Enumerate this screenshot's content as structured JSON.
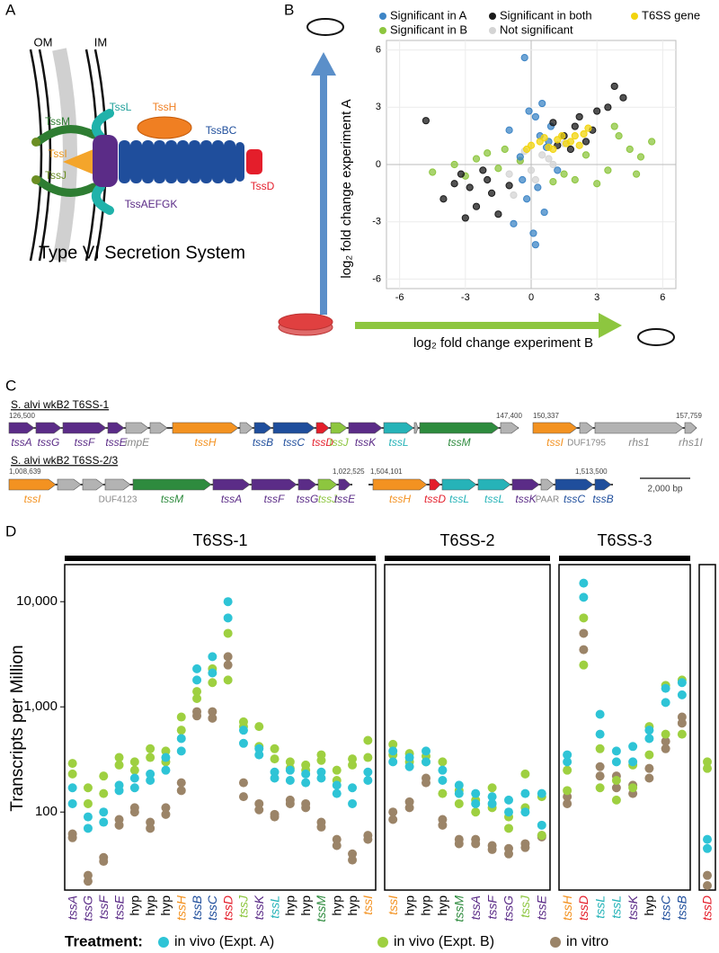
{
  "panel_labels": [
    "A",
    "B",
    "C",
    "D"
  ],
  "panel_a": {
    "labels": {
      "om": "OM",
      "im": "IM",
      "tssm": "TssM",
      "tssl": "TssL",
      "tssh": "TssH",
      "tssbc": "TssBC",
      "tssi": "TssI",
      "tssj": "TssJ",
      "tssaefgk": "TssAEFGK",
      "tssd": "TssD"
    },
    "caption": "Type VI Secretion System"
  },
  "chart_data": [
    {
      "type": "scatter",
      "xlabel": "log₂ fold change experiment B",
      "ylabel": "log₂ fold change experiment A",
      "xlim": [
        -6.6,
        6.6
      ],
      "ylim": [
        -6.5,
        6.5
      ],
      "xticks": [
        -6,
        -3,
        0,
        3,
        6
      ],
      "yticks": [
        -6,
        -3,
        0,
        3,
        6
      ],
      "grid": true,
      "series": [
        {
          "name": "Significant in A",
          "color": "#3d85c6",
          "x": [
            -0.3,
            0.5,
            0.2,
            -1.0,
            0.8,
            -0.5,
            1.2,
            0.3,
            -0.2,
            0.6,
            -0.8,
            0.1,
            0.4,
            -0.4,
            0.9,
            0.2,
            0.7,
            -0.1
          ],
          "y": [
            5.6,
            3.2,
            2.5,
            1.8,
            1.2,
            0.4,
            -0.3,
            -1.2,
            -1.8,
            -2.5,
            -3.1,
            -3.6,
            1.5,
            -0.8,
            2.0,
            -4.2,
            0.9,
            2.8
          ]
        },
        {
          "name": "Significant in both",
          "color": "#1a1a1a",
          "x": [
            -3.5,
            -4.0,
            -3.2,
            -2.5,
            -2.8,
            -1.8,
            -2.2,
            -1.5,
            -3.0,
            -2.0,
            1.5,
            2.0,
            2.5,
            3.0,
            1.8,
            2.2,
            3.5,
            4.2,
            1.2,
            2.8,
            -4.8,
            -1.0,
            1.0,
            3.8
          ],
          "y": [
            -1.0,
            -1.8,
            -0.5,
            -2.2,
            -1.2,
            -1.5,
            -0.3,
            -2.6,
            -2.8,
            -0.8,
            1.5,
            2.0,
            1.2,
            2.8,
            0.8,
            2.5,
            3.0,
            3.5,
            1.0,
            1.8,
            2.3,
            -1.1,
            2.2,
            4.1
          ]
        },
        {
          "name": "T6SS gene",
          "color": "#f2d40c",
          "x": [
            0.0,
            0.4,
            0.8,
            1.2,
            1.6,
            2.0,
            2.4,
            0.6,
            1.0,
            1.4,
            1.8,
            2.2,
            -0.2,
            2.6
          ],
          "y": [
            1.0,
            1.2,
            0.9,
            1.3,
            1.1,
            1.5,
            1.6,
            1.4,
            0.8,
            1.5,
            1.2,
            1.0,
            0.8,
            1.9
          ]
        },
        {
          "name": "Significant in B",
          "color": "#8dc63f",
          "x": [
            -4.5,
            -3.5,
            -2.5,
            -1.5,
            -0.5,
            1.5,
            2.5,
            3.5,
            4.5,
            5.5,
            3.0,
            4.0,
            5.0,
            2.0,
            -2.0,
            -3.0,
            1.0,
            3.8,
            4.8,
            -1.2
          ],
          "y": [
            -0.4,
            0.0,
            0.3,
            -0.2,
            0.2,
            -0.5,
            0.5,
            -0.3,
            0.8,
            1.2,
            -1.0,
            1.5,
            0.4,
            -0.8,
            0.6,
            -0.6,
            -0.9,
            2.0,
            -0.5,
            0.8
          ]
        },
        {
          "name": "Not significant",
          "color": "#d4d4d4",
          "x": [
            -0.5,
            0.0,
            0.5,
            -1.0,
            1.0,
            0.2,
            -0.3,
            0.8,
            1.5,
            -0.8
          ],
          "y": [
            0.2,
            -0.3,
            0.5,
            -0.5,
            0.0,
            -0.8,
            0.7,
            0.3,
            1.1,
            -1.6
          ]
        }
      ]
    },
    {
      "type": "strip",
      "ylabel": "Transcripts per Million",
      "log_scale": true,
      "ylim": [
        20,
        20000
      ],
      "yticks": [
        {
          "value": 10000,
          "label": "10,000"
        },
        {
          "value": 1000,
          "label": "1,000"
        },
        100
      ],
      "legend_title": "Treatment:",
      "series": [
        {
          "name": "in vivo (Expt. A)",
          "color": "#2ec4d6"
        },
        {
          "name": "in vivo (Expt. B)",
          "color": "#9ed040"
        },
        {
          "name": "in vitro",
          "color": "#9b8468"
        }
      ],
      "groups": [
        {
          "title": "T6SS-1",
          "categories": [
            "tssA",
            "tssG",
            "tssF",
            "tssE",
            "hyp",
            "hyp",
            "hyp",
            "tssH",
            "tssB",
            "tssC",
            "tssD",
            "tssJ",
            "tssK",
            "tssL",
            "hyp",
            "hyp",
            "tssM",
            "hyp",
            "hyp",
            "tssI"
          ],
          "category_colors": [
            "#5b2c87",
            "#5b2c87",
            "#5b2c87",
            "#5b2c87",
            "#000000",
            "#000000",
            "#000000",
            "#f39221",
            "#1f4e9c",
            "#1f4e9c",
            "#e41e2b",
            "#8dc63f",
            "#5b2c87",
            "#26b3b8",
            "#000000",
            "#000000",
            "#2e8b3e",
            "#000000",
            "#000000",
            "#f39221"
          ],
          "values": [
            [
              [
                170,
                120
              ],
              [
                90,
                70
              ],
              [
                100,
                80
              ],
              [
                180,
                160
              ],
              [
                210,
                170
              ],
              [
                230,
                200
              ],
              [
                330,
                250
              ],
              [
                500,
                380
              ],
              [
                2300,
                1800
              ],
              [
                3000,
                2100
              ],
              [
                10000,
                7000
              ],
              [
                600,
                450
              ],
              [
                400,
                350
              ],
              [
                240,
                210
              ],
              [
                250,
                200
              ],
              [
                230,
                190
              ],
              [
                240,
                210
              ],
              [
                180,
                150
              ],
              [
                170,
                120
              ],
              [
                240,
                200
              ]
            ],
            [
              [
                290,
                230
              ],
              [
                170,
                120
              ],
              [
                220,
                150
              ],
              [
                330,
                280
              ],
              [
                300,
                250
              ],
              [
                400,
                330
              ],
              [
                380,
                300
              ],
              [
                800,
                600
              ],
              [
                1400,
                1200
              ],
              [
                2300,
                1700
              ],
              [
                5000,
                1800
              ],
              [
                720,
                650
              ],
              [
                650,
                420
              ],
              [
                400,
                320
              ],
              [
                300,
                260
              ],
              [
                280,
                250
              ],
              [
                350,
                310
              ],
              [
                250,
                200
              ],
              [
                320,
                280
              ],
              [
                480,
                330
              ]
            ],
            [
              [
                62,
                57
              ],
              [
                25,
                22
              ],
              [
                37,
                34
              ],
              [
                85,
                75
              ],
              [
                110,
                100
              ],
              [
                80,
                70
              ],
              [
                110,
                95
              ],
              [
                190,
                160
              ],
              [
                900,
                820
              ],
              [
                900,
                780
              ],
              [
                3000,
                2500
              ],
              [
                190,
                140
              ],
              [
                120,
                105
              ],
              [
                95,
                90
              ],
              [
                130,
                120
              ],
              [
                120,
                110
              ],
              [
                80,
                72
              ],
              [
                55,
                48
              ],
              [
                40,
                35
              ],
              [
                60,
                55
              ]
            ]
          ]
        },
        {
          "title": "T6SS-2",
          "categories": [
            "tssI",
            "hyp",
            "hyp",
            "hyp",
            "tssM",
            "tssA",
            "tssF",
            "tssG",
            "tssJ",
            "tssE"
          ],
          "category_colors": [
            "#f39221",
            "#000000",
            "#000000",
            "#000000",
            "#2e8b3e",
            "#5b2c87",
            "#5b2c87",
            "#5b2c87",
            "#8dc63f",
            "#5b2c87"
          ],
          "values": [
            [
              [
                380,
                300
              ],
              [
                330,
                270
              ],
              [
                380,
                300
              ],
              [
                250,
                200
              ],
              [
                180,
                150
              ],
              [
                150,
                120
              ],
              [
                140,
                120
              ],
              [
                130,
                100
              ],
              [
                150,
                100
              ],
              [
                150,
                75
              ]
            ],
            [
              [
                440,
                350
              ],
              [
                360,
                300
              ],
              [
                340,
                300
              ],
              [
                300,
                150
              ],
              [
                160,
                120
              ],
              [
                130,
                100
              ],
              [
                170,
                110
              ],
              [
                90,
                70
              ],
              [
                230,
                110
              ],
              [
                140,
                60
              ]
            ],
            [
              [
                100,
                85
              ],
              [
                125,
                110
              ],
              [
                210,
                190
              ],
              [
                85,
                75
              ],
              [
                55,
                50
              ],
              [
                55,
                50
              ],
              [
                48,
                44
              ],
              [
                45,
                40
              ],
              [
                50,
                46
              ],
              [
                60,
                58
              ]
            ]
          ]
        },
        {
          "title": "T6SS-3",
          "categories": [
            "tssH",
            "tssD",
            "tssL",
            "tssL",
            "tssK",
            "hyp",
            "tssC",
            "tssB"
          ],
          "category_colors": [
            "#f39221",
            "#e41e2b",
            "#26b3b8",
            "#26b3b8",
            "#5b2c87",
            "#000000",
            "#1f4e9c",
            "#1f4e9c"
          ],
          "values": [
            [
              [
                350,
                300
              ],
              [
                15000,
                11000
              ],
              [
                850,
                550
              ],
              [
                380,
                300
              ],
              [
                420,
                300
              ],
              [
                600,
                500
              ],
              [
                1500,
                1100
              ],
              [
                1700,
                1300
              ]
            ],
            [
              [
                250,
                160
              ],
              [
                7000,
                2500
              ],
              [
                400,
                170
              ],
              [
                200,
                130
              ],
              [
                280,
                170
              ],
              [
                650,
                350
              ],
              [
                1600,
                550
              ],
              [
                1800,
                550
              ]
            ],
            [
              [
                140,
                120
              ],
              [
                5000,
                3500
              ],
              [
                270,
                220
              ],
              [
                220,
                170
              ],
              [
                180,
                150
              ],
              [
                260,
                210
              ],
              [
                470,
                400
              ],
              [
                800,
                700
              ]
            ]
          ]
        },
        {
          "categories": [
            "tssD"
          ],
          "category_colors": [
            "#e41e2b"
          ],
          "values": [
            [
              [
                55,
                45
              ]
            ],
            [
              [
                300,
                260
              ]
            ],
            [
              [
                25,
                20
              ]
            ]
          ]
        }
      ]
    }
  ],
  "panel_c": {
    "tracks": [
      {
        "title": "S. alvi wkB2 T6SS-1",
        "coordinates": [
          "126,500",
          "147,400",
          "150,337",
          "157,759"
        ],
        "genes": [
          {
            "label": "tssA",
            "color": "#5b2c87"
          },
          {
            "label": "tssG",
            "color": "#5b2c87"
          },
          {
            "label": "tssF",
            "color": "#5b2c87"
          },
          {
            "label": "tssE",
            "color": "#5b2c87"
          },
          {
            "label": "impE",
            "color": "#b3b3b3"
          },
          {
            "label": "tssH",
            "color": "#f39221"
          },
          {
            "label": "tssB",
            "color": "#1f4e9c"
          },
          {
            "label": "tssC",
            "color": "#1f4e9c"
          },
          {
            "label": "tssD",
            "color": "#e41e2b"
          },
          {
            "label": "tssJ",
            "color": "#8dc63f"
          },
          {
            "label": "tssK",
            "color": "#5b2c87"
          },
          {
            "label": "tssL",
            "color": "#26b3b8"
          },
          {
            "label": "tssM",
            "color": "#2e8b3e"
          },
          {
            "label": "tssI",
            "color": "#f39221"
          },
          {
            "label": "DUF1795",
            "color": "#b3b3b3"
          },
          {
            "label": "rhs1",
            "color": "#b3b3b3"
          },
          {
            "label": "rhs1I",
            "color": "#b3b3b3"
          }
        ]
      },
      {
        "title": "S. alvi wkB2 T6SS-2/3",
        "coordinates": [
          "1,008,639",
          "1,022,525",
          "1,504,101",
          "1,513,500"
        ],
        "genes": [
          {
            "label": "tssI",
            "color": "#f39221"
          },
          {
            "label": "DUF4123",
            "color": "#b3b3b3"
          },
          {
            "label": "tssM",
            "color": "#2e8b3e"
          },
          {
            "label": "tssA",
            "color": "#5b2c87"
          },
          {
            "label": "tssF",
            "color": "#5b2c87"
          },
          {
            "label": "tssG",
            "color": "#5b2c87"
          },
          {
            "label": "tssJ",
            "color": "#8dc63f"
          },
          {
            "label": "tssE",
            "color": "#5b2c87"
          },
          {
            "label": "tssH",
            "color": "#f39221"
          },
          {
            "label": "tssD",
            "color": "#e41e2b"
          },
          {
            "label": "tssL",
            "color": "#26b3b8"
          },
          {
            "label": "tssL",
            "color": "#26b3b8"
          },
          {
            "label": "tssK",
            "color": "#5b2c87"
          },
          {
            "label": "PAAR",
            "color": "#b3b3b3"
          },
          {
            "label": "tssC",
            "color": "#1f4e9c"
          },
          {
            "label": "tssB",
            "color": "#1f4e9c"
          }
        ]
      }
    ],
    "scale_bar": "2,000 bp"
  }
}
